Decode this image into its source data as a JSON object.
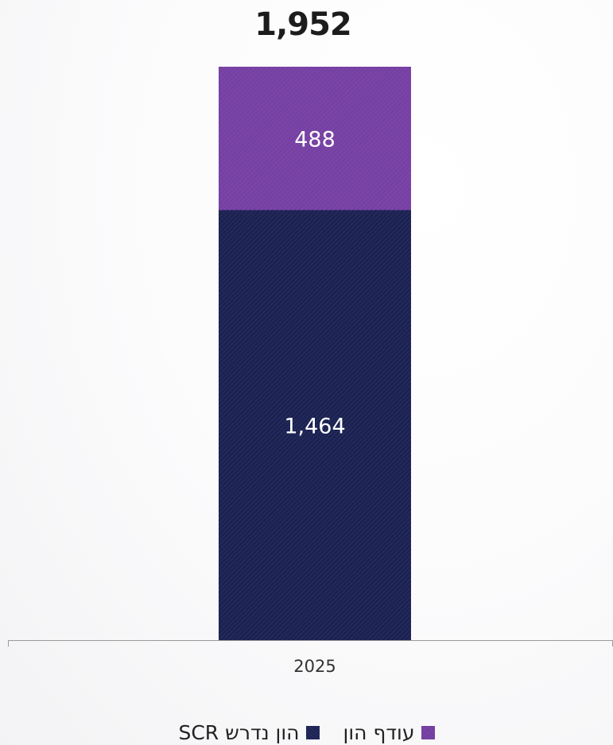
{
  "chart_data": {
    "type": "bar",
    "stacked": true,
    "categories": [
      "2025"
    ],
    "series": [
      {
        "name": "הון נדרש SCR",
        "values": [
          1464
        ],
        "color": "#1b2150",
        "pattern": "diagonal-hatch"
      },
      {
        "name": "עודף הון",
        "values": [
          488
        ],
        "color": "#7b45a8",
        "pattern": "diagonal-hatch"
      }
    ],
    "totals": [
      "1,952"
    ],
    "value_labels": [
      [
        "1,464"
      ],
      [
        "488"
      ]
    ],
    "ylim": [
      0,
      1952
    ],
    "title": "",
    "xlabel": "",
    "ylabel": "",
    "grid": false,
    "legend": {
      "position": "bottom-center",
      "items": [
        {
          "label": "עודף הון",
          "color": "#7b45a8"
        },
        {
          "label": "הון נדרש SCR",
          "color": "#1b2150"
        }
      ]
    }
  }
}
